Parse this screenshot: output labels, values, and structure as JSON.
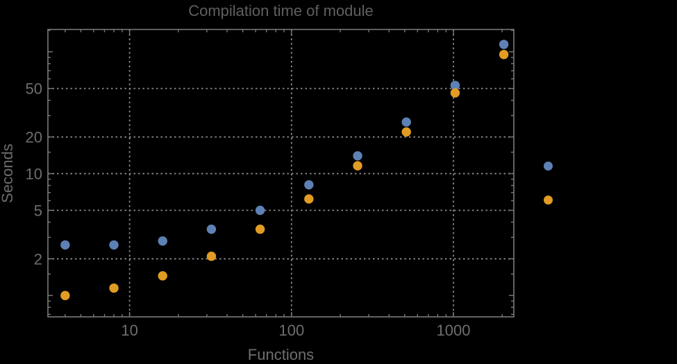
{
  "title": "Compilation time of module",
  "colors": {
    "background": "#000000",
    "frame": "#7a7a7a",
    "grid": "#8c8c8c",
    "title_text": "#5f5f5f",
    "label_text": "#6e6e6e",
    "tick_text": "#6e6e6e",
    "series1": "#5e81b5",
    "series2": "#e19c24"
  },
  "chart_data": {
    "type": "scatter",
    "title": "Compilation time of module",
    "xlabel": "Functions",
    "ylabel": "Seconds",
    "x_scale": "log",
    "y_scale": "log",
    "xlim": [
      3.13,
      2360
    ],
    "ylim": [
      0.668,
      152.5
    ],
    "x_ticks": [
      10,
      100,
      1000
    ],
    "y_ticks": [
      2,
      5,
      10,
      20,
      50
    ],
    "grid": "dotted-major",
    "legend_position": "right-outside",
    "legend_labels_visible": false,
    "x": [
      4,
      8,
      16,
      32,
      64,
      128,
      256,
      512,
      1024,
      2048
    ],
    "series": [
      {
        "name": "series-1-blue",
        "color": "#5e81b5",
        "values": [
          2.6,
          2.6,
          2.8,
          3.5,
          5.0,
          8.1,
          14.0,
          26.5,
          53,
          115
        ]
      },
      {
        "name": "series-2-orange",
        "color": "#e19c24",
        "values": [
          1.0,
          1.15,
          1.45,
          2.1,
          3.5,
          6.2,
          11.6,
          22,
          46,
          95
        ]
      }
    ]
  }
}
